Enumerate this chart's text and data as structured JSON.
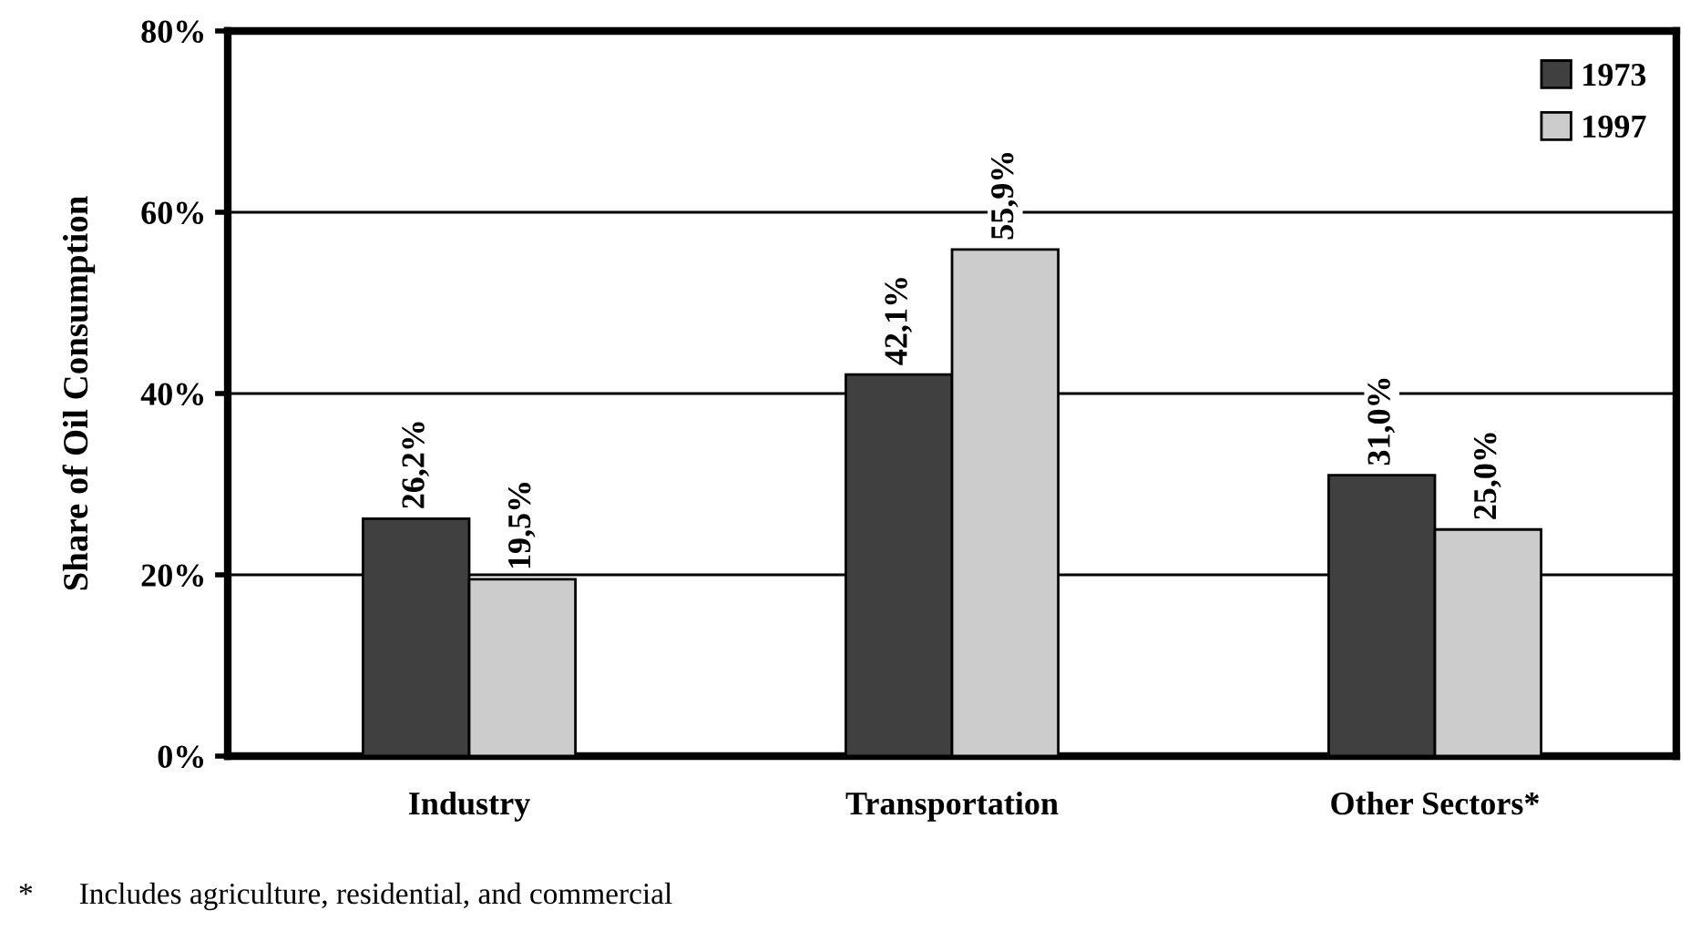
{
  "chart_data": {
    "type": "bar",
    "ylabel": "Share of Oil Consumption",
    "categories": [
      "Industry",
      "Transportation",
      "Other Sectors*"
    ],
    "series": [
      {
        "name": "1973",
        "color": "#404040",
        "values": [
          26.2,
          42.1,
          31.0
        ],
        "value_labels": [
          "26,2%",
          "42,1%",
          "31,0%"
        ]
      },
      {
        "name": "1997",
        "color": "#cccccc",
        "values": [
          19.5,
          55.9,
          25.0
        ],
        "value_labels": [
          "19,5%",
          "55,9%",
          "25,0%"
        ]
      }
    ],
    "ylim": [
      0,
      80
    ],
    "yticks": [
      {
        "value": 0,
        "label": "0%"
      },
      {
        "value": 20,
        "label": "20%"
      },
      {
        "value": 40,
        "label": "40%"
      },
      {
        "value": 60,
        "label": "60%"
      },
      {
        "value": 80,
        "label": "80%"
      }
    ],
    "grid": "y",
    "legend": "top right",
    "annotations": [
      "*      Includes agriculture, residential, and commercial"
    ]
  }
}
